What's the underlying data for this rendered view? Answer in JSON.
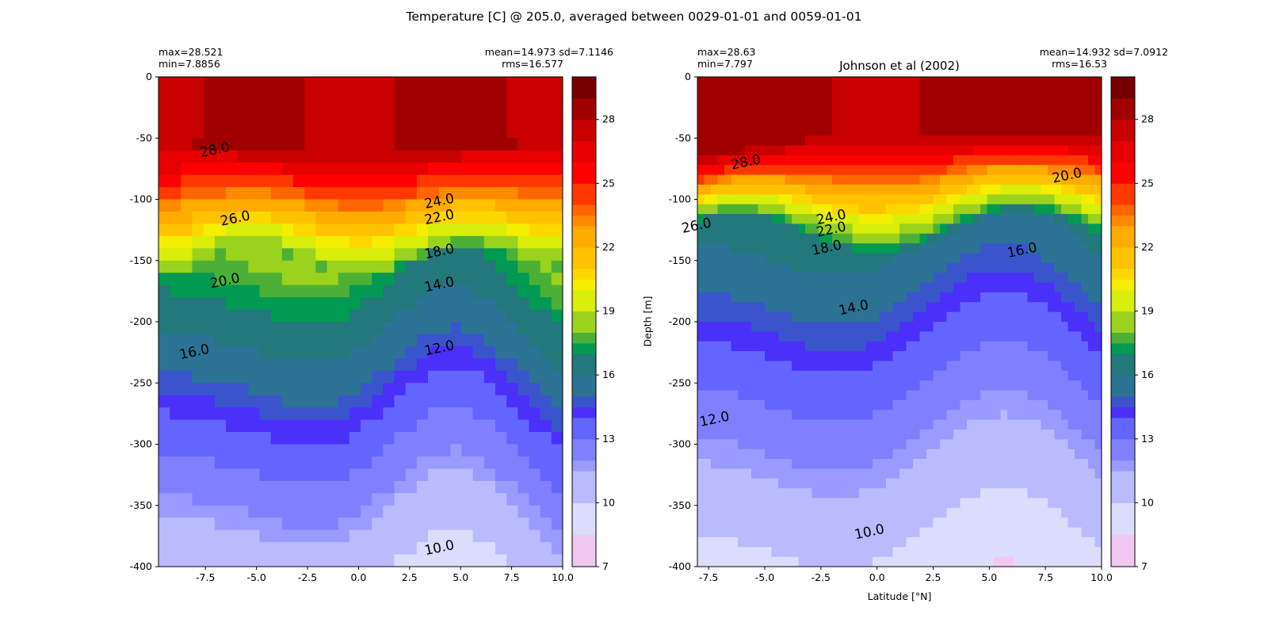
{
  "figure": {
    "suptitle": "Temperature [C] @ 205.0, averaged between 0029-01-01 and 0059-01-01"
  },
  "panels": [
    {
      "title": "",
      "stats_left": [
        "max=28.521",
        "min=7.8856"
      ],
      "stats_right": [
        "mean=14.973 sd=7.1146",
        "rms=16.577"
      ],
      "ylabel": "",
      "xlabel": ""
    },
    {
      "title": "Johnson et al (2002)",
      "stats_left": [
        "max=28.63",
        "min=7.797"
      ],
      "stats_right": [
        "mean=14.932 sd=7.0912",
        "rms=16.53"
      ],
      "ylabel": "Depth [m]",
      "xlabel": "Latitude [°N]"
    }
  ],
  "chart_data": [
    {
      "type": "heatmap",
      "title": "",
      "xlabel": "",
      "ylabel": "",
      "xlim": [
        -9.8,
        10.0
      ],
      "ylim": [
        -400,
        0
      ],
      "xticks": [
        -7.5,
        -5.0,
        -2.5,
        0.0,
        2.5,
        5.0,
        7.5,
        10.0
      ],
      "yticks": [
        0,
        -50,
        -100,
        -150,
        -200,
        -250,
        -300,
        -350,
        -400
      ],
      "colorbar": {
        "levels": [
          7,
          8.5,
          10,
          11.5,
          12,
          13,
          14,
          14.5,
          15,
          16,
          17,
          17.5,
          18,
          19,
          20,
          20.5,
          21,
          22,
          23,
          23.5,
          24,
          25,
          26,
          27,
          28,
          29,
          30
        ],
        "ticks": [
          7,
          10,
          13,
          16,
          19,
          22,
          25,
          28
        ]
      },
      "approx_depth_profile": {
        "depths": [
          0,
          -50,
          -100,
          -150,
          -200,
          -250,
          -300,
          -350,
          -400
        ],
        "temperature_near_equator": [
          27.5,
          27,
          25.5,
          18,
          15,
          13,
          12,
          11.5,
          10.5
        ]
      },
      "contour_labels": [
        {
          "value": "28.0",
          "x": -7.0,
          "y": -63
        },
        {
          "value": "26.0",
          "x": -6.0,
          "y": -119
        },
        {
          "value": "24.0",
          "x": 4.0,
          "y": -105
        },
        {
          "value": "22.0",
          "x": 4.0,
          "y": -118
        },
        {
          "value": "18.0",
          "x": 4.0,
          "y": -146
        },
        {
          "value": "14.0",
          "x": 4.0,
          "y": -173
        },
        {
          "value": "20.0",
          "x": -6.5,
          "y": -170
        },
        {
          "value": "16.0",
          "x": -8.0,
          "y": -228
        },
        {
          "value": "12.0",
          "x": 4.0,
          "y": -225
        },
        {
          "value": "10.0",
          "x": 4.0,
          "y": -388
        }
      ]
    },
    {
      "type": "heatmap",
      "title": "Johnson et al (2002)",
      "xlabel": "Latitude [°N]",
      "ylabel": "Depth [m]",
      "xlim": [
        -8.0,
        10.0
      ],
      "ylim": [
        -400,
        0
      ],
      "xticks": [
        -7.5,
        -5.0,
        -2.5,
        0.0,
        2.5,
        5.0,
        7.5,
        10.0
      ],
      "yticks": [
        0,
        -50,
        -100,
        -150,
        -200,
        -250,
        -300,
        -350,
        -400
      ],
      "colorbar": {
        "levels": [
          7,
          8.5,
          10,
          11.5,
          12,
          13,
          14,
          14.5,
          15,
          16,
          17,
          17.5,
          18,
          19,
          20,
          20.5,
          21,
          22,
          23,
          23.5,
          24,
          25,
          26,
          27,
          28,
          29,
          30
        ],
        "ticks": [
          7,
          10,
          13,
          16,
          19,
          22,
          25,
          28
        ]
      },
      "approx_depth_profile": {
        "depths": [
          0,
          -50,
          -100,
          -150,
          -200,
          -250,
          -300,
          -350,
          -400
        ],
        "temperature_near_equator": [
          27.5,
          26,
          21,
          15,
          13.5,
          12,
          11,
          10.5,
          9.5
        ]
      },
      "contour_labels": [
        {
          "value": "28.0",
          "x": -5.8,
          "y": -73
        },
        {
          "value": "26.0",
          "x": -8.0,
          "y": -125
        },
        {
          "value": "24.0",
          "x": -2.0,
          "y": -118
        },
        {
          "value": "22.0",
          "x": -2.0,
          "y": -128
        },
        {
          "value": "18.0",
          "x": -2.2,
          "y": -143
        },
        {
          "value": "16.0",
          "x": 6.5,
          "y": -145
        },
        {
          "value": "14.0",
          "x": -1.0,
          "y": -192
        },
        {
          "value": "20.0",
          "x": 8.5,
          "y": -84
        },
        {
          "value": "12.0",
          "x": -7.2,
          "y": -283
        },
        {
          "value": "10.0",
          "x": -0.3,
          "y": -375
        }
      ]
    }
  ]
}
